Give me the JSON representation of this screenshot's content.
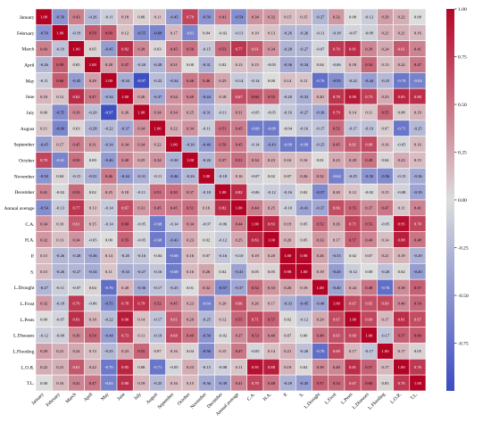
{
  "chart_data": {
    "type": "heatmap",
    "title": "",
    "xlabel": "",
    "ylabel": "",
    "labels": [
      "January",
      "February",
      "March",
      "April",
      "May",
      "June",
      "July",
      "August",
      "September",
      "October",
      "November",
      "December",
      "Annual average",
      "C.A.",
      "H.A.",
      "P.",
      "S.",
      "L.Drought",
      "L.Frost",
      "L.Pests",
      "L.Diseases",
      "L.Flooding",
      "L.O.R.",
      "T.L."
    ],
    "values": [
      [
        1.0,
        -0.5,
        0.43,
        -0.26,
        -0.11,
        0.18,
        0.06,
        0.11,
        -0.45,
        0.7,
        -0.5,
        0.41,
        -0.54,
        0.34,
        0.32,
        0.15,
        0.15,
        -0.27,
        0.32,
        0.0,
        -0.12,
        0.29,
        0.22,
        0.0
      ],
      [
        -0.5,
        1.0,
        -0.19,
        0.59,
        0.6,
        0.12,
        -0.55,
        -0.6,
        0.17,
        -0.61,
        0.04,
        -0.02,
        -0.13,
        0.1,
        0.13,
        -0.26,
        -0.26,
        -0.11,
        -0.18,
        -0.07,
        -0.09,
        0.21,
        0.21,
        0.16
      ],
      [
        0.43,
        -0.19,
        1.0,
        0.05,
        -0.45,
        0.82,
        0.39,
        0.03,
        0.45,
        0.5,
        -0.15,
        0.53,
        0.77,
        0.61,
        0.34,
        -0.28,
        -0.27,
        -0.07,
        0.76,
        0.81,
        0.39,
        0.24,
        0.61,
        0.41
      ],
      [
        -0.26,
        0.59,
        0.05,
        1.0,
        0.28,
        0.47,
        -0.2,
        -0.28,
        0.31,
        -0.0,
        -0.31,
        0.02,
        0.13,
        0.15,
        -0.05,
        -0.36,
        -0.34,
        0.04,
        -0.06,
        0.18,
        0.54,
        0.13,
        0.22,
        0.47
      ],
      [
        -0.11,
        0.6,
        -0.45,
        0.28,
        1.0,
        -0.34,
        -0.97,
        -0.22,
        -0.34,
        0.46,
        0.46,
        0.25,
        -0.14,
        -0.14,
        0.0,
        0.14,
        0.11,
        -0.76,
        -0.55,
        -0.22,
        -0.44,
        -0.25,
        -0.7,
        -0.63
      ],
      [
        0.18,
        0.12,
        0.82,
        0.47,
        -0.34,
        1.0,
        0.26,
        -0.37,
        0.34,
        0.4,
        -0.44,
        0.18,
        0.67,
        0.6,
        0.55,
        -0.2,
        -0.33,
        0.2,
        0.78,
        0.9,
        0.73,
        0.23,
        0.85,
        0.8
      ],
      [
        0.06,
        -0.55,
        0.39,
        -0.2,
        -0.97,
        0.26,
        1.0,
        0.34,
        0.34,
        0.25,
        -0.31,
        -0.11,
        0.31,
        -0.05,
        -0.05,
        -0.16,
        -0.27,
        -0.36,
        0.79,
        0.14,
        0.11,
        0.55,
        0.08,
        0.19
      ],
      [
        0.11,
        -0.6,
        0.03,
        -0.28,
        -0.22,
        -0.37,
        0.34,
        1.0,
        0.22,
        0.34,
        -0.11,
        0.51,
        0.45,
        -0.68,
        -0.68,
        -0.04,
        -0.16,
        -0.17,
        0.52,
        -0.17,
        -0.19,
        0.07,
        -0.71,
        -0.25
      ],
      [
        -0.45,
        0.17,
        0.45,
        0.31,
        -0.34,
        0.34,
        0.34,
        0.22,
        1.0,
        -0.3,
        -0.46,
        0.5,
        0.45,
        -0.14,
        -0.43,
        -0.68,
        -0.68,
        -0.25,
        0.45,
        0.61,
        0.68,
        0.16,
        -0.05,
        0.16
      ],
      [
        0.7,
        -0.61,
        0.5,
        -0.0,
        -0.46,
        0.4,
        0.25,
        0.34,
        -0.3,
        1.0,
        -0.26,
        0.37,
        0.51,
        0.34,
        0.23,
        0.16,
        0.16,
        0.01,
        0.23,
        0.29,
        0.49,
        0.04,
        0.23,
        0.15
      ],
      [
        -0.5,
        0.04,
        -0.15,
        -0.31,
        0.46,
        -0.44,
        -0.31,
        -0.11,
        -0.46,
        -0.26,
        1.0,
        -0.18,
        0.16,
        -0.07,
        0.02,
        0.07,
        0.26,
        0.32,
        -0.64,
        -0.25,
        -0.5,
        -0.56,
        -0.15,
        -0.36
      ],
      [
        0.41,
        -0.02,
        0.53,
        0.02,
        0.25,
        0.18,
        -0.11,
        0.51,
        0.5,
        0.37,
        -0.18,
        1.0,
        0.82,
        -0.06,
        -0.12,
        -0.16,
        0.02,
        -0.57,
        0.2,
        0.12,
        -0.02,
        0.15,
        -0.08,
        -0.39
      ],
      [
        -0.54,
        -0.13,
        0.77,
        0.13,
        -0.14,
        0.67,
        0.31,
        0.45,
        0.45,
        0.51,
        0.16,
        0.82,
        1.0,
        0.44,
        0.25,
        -0.1,
        -0.41,
        -0.37,
        0.66,
        0.55,
        0.37,
        0.47,
        0.11,
        0.41
      ],
      [
        0.34,
        0.1,
        0.61,
        0.15,
        -0.14,
        0.6,
        -0.05,
        -0.68,
        -0.14,
        0.34,
        -0.07,
        -0.06,
        0.44,
        1.0,
        0.83,
        0.19,
        0.05,
        0.52,
        0.26,
        0.71,
        0.53,
        -0.05,
        0.95,
        0.7
      ],
      [
        0.32,
        0.13,
        0.34,
        -0.05,
        0.0,
        0.55,
        -0.05,
        -0.68,
        -0.43,
        0.23,
        0.02,
        -0.12,
        0.25,
        0.83,
        1.0,
        0.2,
        0.05,
        0.33,
        0.17,
        0.57,
        0.4,
        0.14,
        0.88,
        0.48
      ],
      [
        0.15,
        -0.26,
        -0.28,
        -0.36,
        0.14,
        -0.2,
        -0.16,
        -0.04,
        -0.68,
        0.16,
        0.07,
        -0.16,
        -0.1,
        0.19,
        0.2,
        1.0,
        0.98,
        0.26,
        -0.33,
        0.02,
        0.07,
        0.21,
        0.19,
        -0.29
      ],
      [
        0.15,
        -0.26,
        -0.27,
        -0.34,
        0.11,
        -0.33,
        -0.27,
        -0.16,
        -0.68,
        0.16,
        0.26,
        0.02,
        -0.41,
        0.05,
        0.05,
        0.98,
        1.0,
        0.19,
        -0.45,
        -0.12,
        0.0,
        -0.2,
        0.02,
        -0.45
      ],
      [
        -0.27,
        -0.11,
        -0.07,
        0.04,
        -0.76,
        0.2,
        -0.36,
        -0.17,
        -0.25,
        0.01,
        0.32,
        -0.57,
        -0.37,
        0.52,
        0.33,
        0.26,
        0.19,
        1.0,
        -0.4,
        0.24,
        0.48,
        -0.76,
        0.38,
        0.57
      ],
      [
        0.32,
        -0.18,
        0.76,
        -0.06,
        -0.55,
        0.78,
        0.79,
        0.52,
        0.45,
        0.23,
        -0.64,
        0.2,
        0.66,
        0.26,
        0.17,
        -0.33,
        -0.45,
        -0.4,
        1.0,
        0.67,
        0.65,
        0.69,
        0.4,
        0.54
      ],
      [
        0.0,
        -0.07,
        0.81,
        0.18,
        -0.22,
        0.9,
        0.14,
        -0.17,
        0.61,
        0.29,
        -0.25,
        0.12,
        0.55,
        0.71,
        0.57,
        0.02,
        -0.12,
        0.24,
        0.67,
        1.0,
        0.69,
        0.17,
        0.81,
        0.67
      ],
      [
        -0.12,
        -0.09,
        0.39,
        0.54,
        -0.44,
        0.73,
        0.11,
        -0.19,
        0.68,
        0.49,
        -0.5,
        -0.02,
        0.37,
        0.53,
        0.4,
        0.07,
        0.0,
        0.48,
        0.65,
        0.69,
        1.0,
        -0.17,
        0.57,
        0.6
      ],
      [
        0.29,
        0.21,
        0.24,
        0.13,
        -0.25,
        0.23,
        0.55,
        0.07,
        0.16,
        0.04,
        -0.56,
        0.15,
        0.47,
        -0.05,
        0.14,
        0.21,
        -0.2,
        -0.76,
        0.69,
        0.17,
        -0.17,
        1.0,
        0.17,
        0.05
      ],
      [
        0.22,
        0.21,
        0.61,
        0.22,
        -0.7,
        0.85,
        0.08,
        -0.71,
        -0.05,
        0.23,
        -0.15,
        -0.08,
        0.11,
        0.95,
        0.88,
        0.19,
        0.02,
        0.38,
        0.4,
        0.81,
        0.57,
        0.17,
        1.0,
        0.76
      ],
      [
        0.0,
        0.16,
        0.41,
        0.47,
        -0.63,
        0.8,
        0.19,
        -0.25,
        0.16,
        0.15,
        -0.36,
        -0.39,
        0.41,
        0.7,
        0.48,
        -0.29,
        -0.45,
        0.57,
        0.54,
        0.67,
        0.6,
        0.05,
        0.76,
        1.0
      ]
    ],
    "vmin": -1.0,
    "vmax": 1.0,
    "colorbar_ticks": [
      1.0,
      0.75,
      0.5,
      0.25,
      0.0,
      -0.25,
      -0.5,
      -0.75
    ],
    "colormap": "coolwarm",
    "colors": {
      "low": "#3b4cc0",
      "mid": "#dddddd",
      "high": "#b40426"
    },
    "grid": true,
    "legend": "colorbar-right"
  }
}
